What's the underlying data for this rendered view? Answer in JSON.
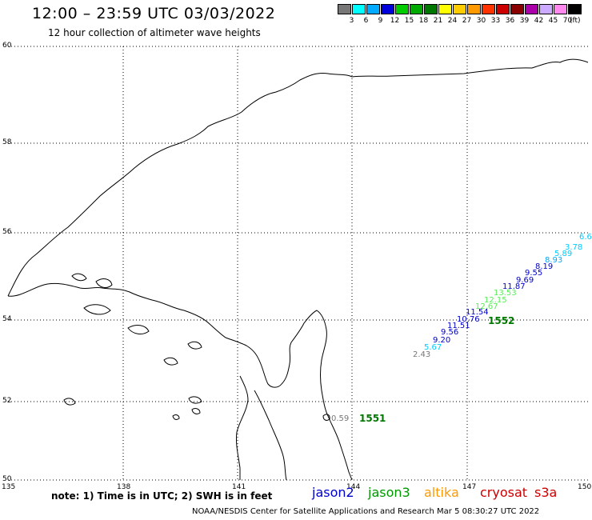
{
  "title": "12:00 – 23:59 UTC 03/03/2022",
  "subtitle": "12 hour collection of altimeter wave heights",
  "legend": {
    "unit": "(ft)",
    "swatches": [
      {
        "color": "#777777",
        "label": "3"
      },
      {
        "color": "#00ffff",
        "label": "6"
      },
      {
        "color": "#00aaff",
        "label": "9"
      },
      {
        "color": "#0000dd",
        "label": "12"
      },
      {
        "color": "#00cc00",
        "label": "15"
      },
      {
        "color": "#00aa00",
        "label": "18"
      },
      {
        "color": "#007700",
        "label": "21"
      },
      {
        "color": "#ffff00",
        "label": "24"
      },
      {
        "color": "#ffcc00",
        "label": "27"
      },
      {
        "color": "#ff9900",
        "label": "30"
      },
      {
        "color": "#ff3300",
        "label": "33"
      },
      {
        "color": "#cc0000",
        "label": "36"
      },
      {
        "color": "#880000",
        "label": "39"
      },
      {
        "color": "#aa00aa",
        "label": "42"
      },
      {
        "color": "#ccaaff",
        "label": "45"
      },
      {
        "color": "#ff88ee",
        "label": "70"
      },
      {
        "color": "#000000",
        "label": ""
      }
    ]
  },
  "axes": {
    "x_ticks": [
      "135",
      "138",
      "141",
      "144",
      "147",
      "150"
    ],
    "y_ticks": [
      "60",
      "58",
      "56",
      "54",
      "52",
      "50"
    ]
  },
  "passes": [
    {
      "label": "1552",
      "color": "#007700"
    },
    {
      "label": "1551",
      "color": "#007700"
    }
  ],
  "wave_heights": [
    {
      "text": "2.43",
      "color": "#777777"
    },
    {
      "text": "5.67",
      "color": "#00ccff"
    },
    {
      "text": "9.20",
      "color": "#0000cc"
    },
    {
      "text": "9.56",
      "color": "#0000cc"
    },
    {
      "text": "11.51",
      "color": "#0000cc"
    },
    {
      "text": "10.76",
      "color": "#0000cc"
    },
    {
      "text": "11.54",
      "color": "#0000cc"
    },
    {
      "text": "12.67",
      "color": "#55ee55"
    },
    {
      "text": "12.15",
      "color": "#55ee55"
    },
    {
      "text": "13.53",
      "color": "#55ee55"
    },
    {
      "text": "11.87",
      "color": "#0000cc"
    },
    {
      "text": "9.69",
      "color": "#0000cc"
    },
    {
      "text": "9.55",
      "color": "#0000cc"
    },
    {
      "text": "8.19",
      "color": "#0000cc"
    },
    {
      "text": "8.93",
      "color": "#00aaff"
    },
    {
      "text": "5.89",
      "color": "#00ccff"
    },
    {
      "text": "3.78",
      "color": "#00ccff"
    },
    {
      "text": "6.6",
      "color": "#00ccff"
    },
    {
      "text": "0.59",
      "color": "#777777"
    }
  ],
  "note": "note: 1) Time is in UTC; 2) SWH is in feet",
  "satellites": [
    {
      "name": "jason2",
      "color": "#0000cc"
    },
    {
      "name": "jason3",
      "color": "#009900"
    },
    {
      "name": "altika",
      "color": "#ff9900"
    },
    {
      "name": "cryosat",
      "color": "#cc0000"
    },
    {
      "name": "s3a",
      "color": "#cc0000"
    }
  ],
  "footer": "NOAA/NESDIS Center for Satellite Applications and Research   Mar  5 08:30:27 UTC 2022"
}
